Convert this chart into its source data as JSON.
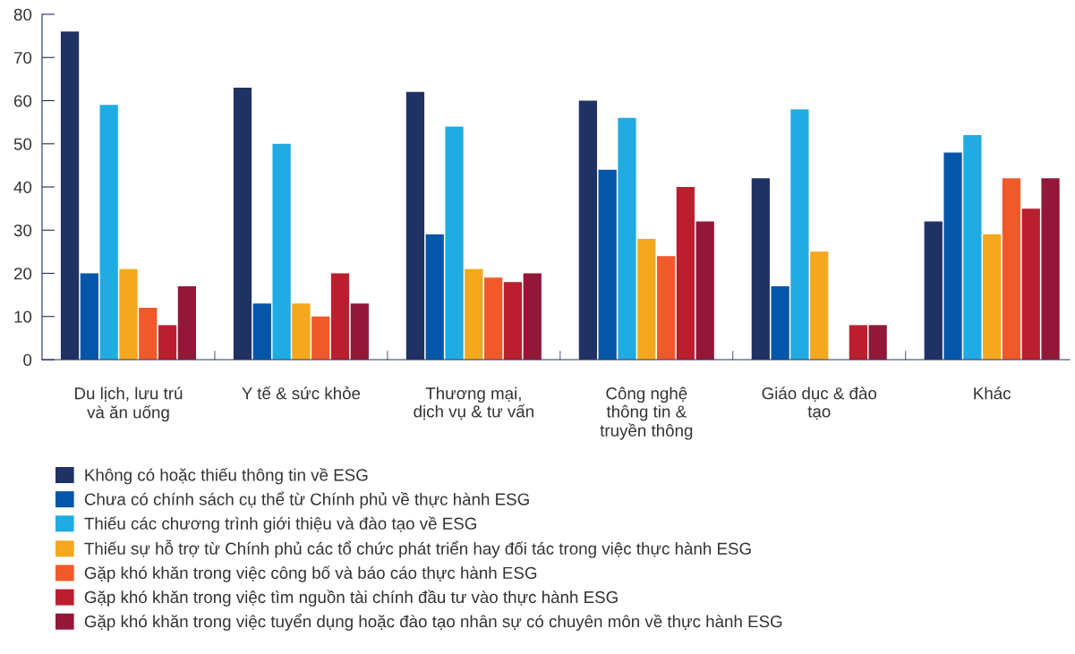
{
  "chart_data": {
    "type": "bar",
    "categories": [
      "Du lịch, lưu trú\nvà ăn uống",
      "Y tế & sức khỏe",
      "Thương mại,\ndịch vụ & tư vấn",
      "Công nghệ\nthông tin &\ntruyền thông",
      "Giáo dục & đào\ntạo",
      "Khác"
    ],
    "series": [
      {
        "name": "Không có hoặc thiếu thông tin về ESG",
        "color": "#203264",
        "values": [
          76,
          63,
          62,
          60,
          42,
          32
        ]
      },
      {
        "name": "Chưa có chính sách cụ thể từ Chính phủ về thực hành ESG",
        "color": "#0356a8",
        "values": [
          20,
          13,
          29,
          44,
          17,
          48
        ]
      },
      {
        "name": "Thiếu các chương trình giới thiệu và đào tạo về ESG",
        "color": "#20abe2",
        "values": [
          59,
          50,
          54,
          56,
          58,
          52
        ]
      },
      {
        "name": "Thiếu sự hỗ trợ từ Chính phủ các tổ chức phát triển hay đối tác trong việc thực hành ESG",
        "color": "#f4a81e",
        "values": [
          21,
          13,
          21,
          28,
          25,
          29
        ]
      },
      {
        "name": "Gặp khó khăn trong việc công bố và báo cáo thực hành ESG",
        "color": "#f05a2a",
        "values": [
          12,
          10,
          19,
          24,
          0,
          42
        ]
      },
      {
        "name": "Gặp khó khăn trong việc tìm nguồn tài chính đầu tư vào thực hành ESG",
        "color": "#bb1f2f",
        "values": [
          8,
          20,
          18,
          40,
          8,
          35
        ]
      },
      {
        "name": "Gặp khó khăn trong việc tuyển dụng hoặc đào tạo nhân sự có chuyên môn về thực hành ESG",
        "color": "#931739",
        "values": [
          17,
          13,
          20,
          32,
          8,
          42
        ]
      }
    ],
    "ylim": [
      0,
      80
    ],
    "yticks": [
      0,
      10,
      20,
      30,
      40,
      50,
      60,
      70,
      80
    ],
    "grid": false,
    "legend": "bottom"
  }
}
